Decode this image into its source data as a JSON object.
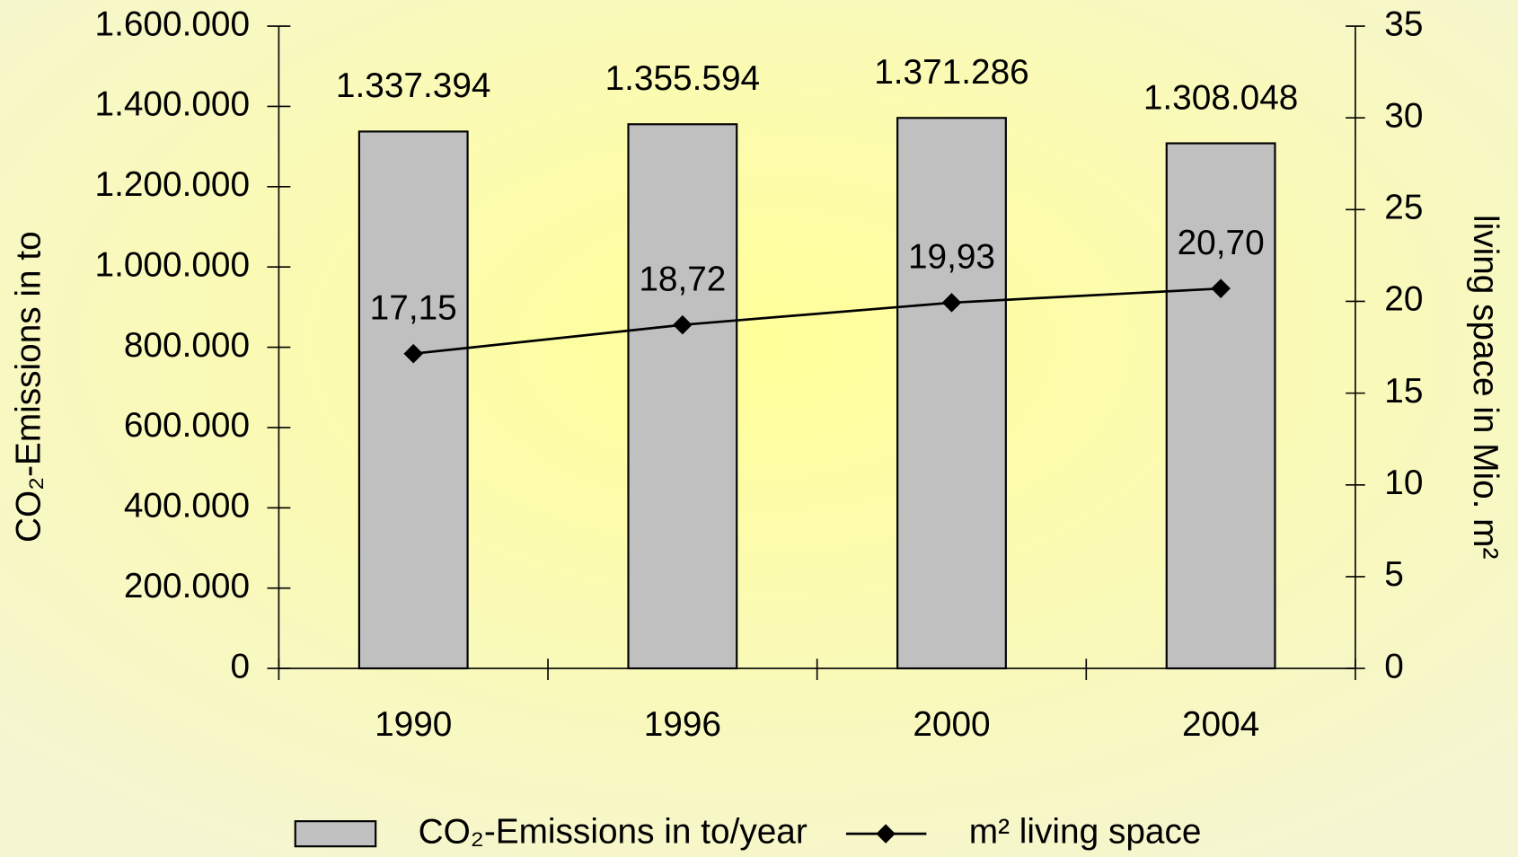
{
  "chart_data": {
    "type": "bar+line",
    "categories": [
      "1990",
      "1996",
      "2000",
      "2004"
    ],
    "series": [
      {
        "name": "CO₂-Emissions in to/year",
        "type": "bar",
        "color": "#c0c0c0",
        "values": [
          1337394,
          1355594,
          1371286,
          1308048
        ],
        "value_labels": [
          "1.337.394",
          "1.355.594",
          "1.371.286",
          "1.308.048"
        ]
      },
      {
        "name": "m² living space",
        "type": "line",
        "axis": "y2",
        "color": "#000000",
        "values": [
          17.15,
          18.72,
          19.93,
          20.7
        ],
        "value_labels": [
          "17,15",
          "18,72",
          "19,93",
          "20,70"
        ]
      }
    ],
    "y_label": "CO₂-Emissions in to",
    "y2_label": "living space in Mio. m²",
    "ylim": [
      0,
      1600000
    ],
    "yticks": [
      0,
      {
        "value": 200000,
        "label": "200.000"
      },
      {
        "value": 400000,
        "label": "400.000"
      },
      {
        "value": 600000,
        "label": "600.000"
      },
      {
        "value": 800000,
        "label": "800.000"
      },
      {
        "value": 1000000,
        "label": "1.000.000"
      },
      {
        "value": 1200000,
        "label": "1.200.000"
      },
      {
        "value": 1400000,
        "label": "1.400.000"
      },
      {
        "value": 1600000,
        "label": "1.600.000"
      }
    ],
    "y2lim": [
      0,
      35
    ],
    "y2ticks": [
      0,
      5,
      10,
      15,
      20,
      25,
      30,
      35
    ],
    "legend": "bottom"
  }
}
